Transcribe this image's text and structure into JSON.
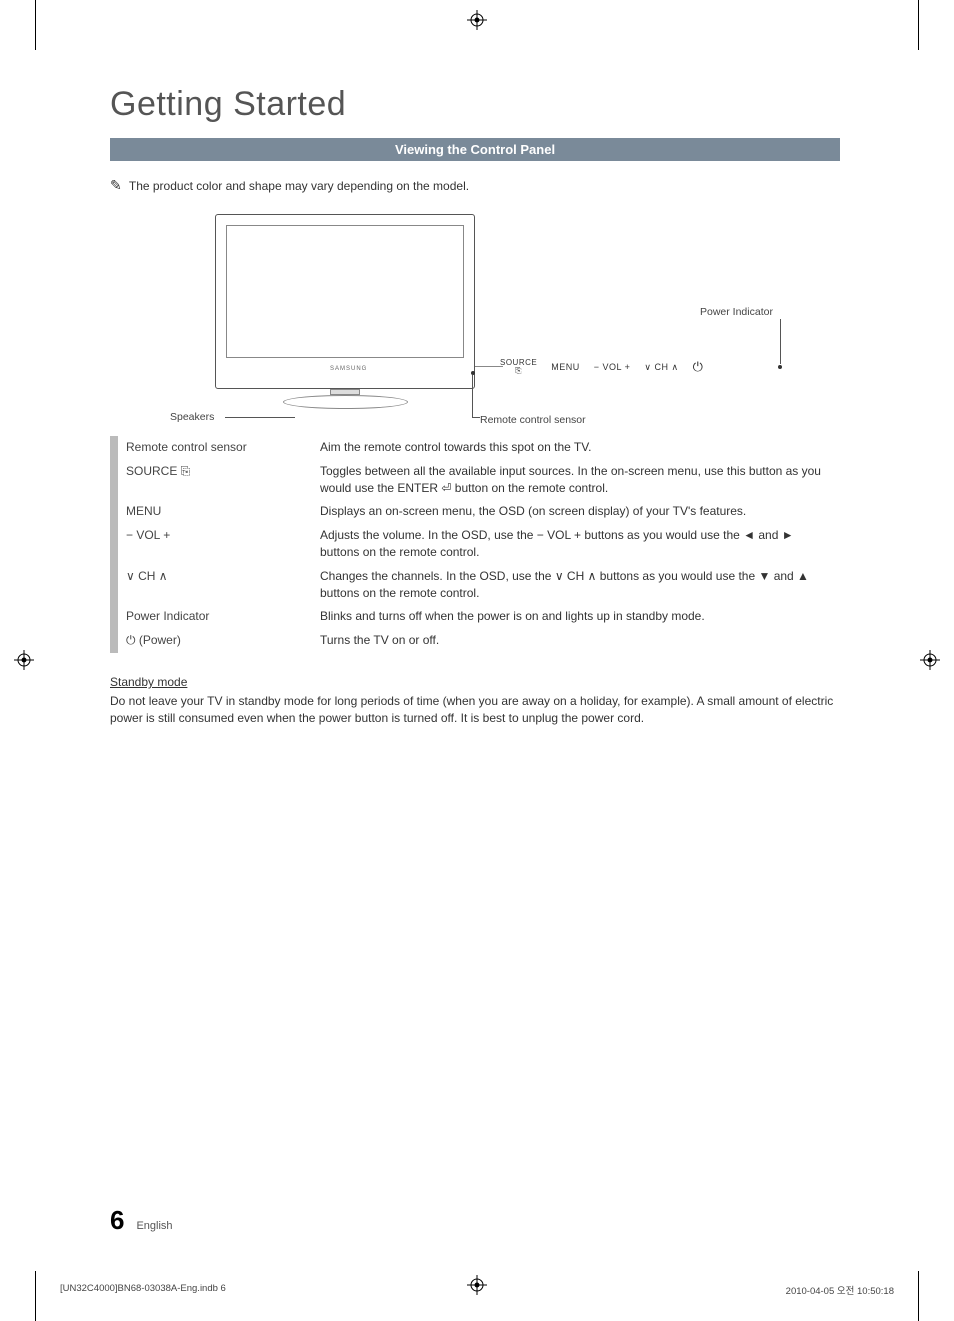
{
  "page": {
    "title": "Getting Started",
    "section_bar": "Viewing the Control Panel",
    "note": "The product color and shape may vary depending on the model.",
    "note_icon": "✎"
  },
  "diagram": {
    "speakers_label": "Speakers",
    "remote_sensor_label": "Remote control sensor",
    "power_indicator_label": "Power Indicator",
    "tv_logo": "SAMSUNG",
    "controls": {
      "source": "SOURCE",
      "source_icon": "⎘",
      "menu": "MENU",
      "vol": "− VOL +",
      "ch": "∨ CH ∧",
      "power_icon": "⏻"
    }
  },
  "table": {
    "rows": [
      {
        "label": "Remote control sensor",
        "desc": "Aim the remote control towards this spot on the TV."
      },
      {
        "label": "SOURCE ⎘",
        "desc": "Toggles between all the available input sources. In the on-screen menu, use this button as you would use the ENTER ⏎ button on the remote control."
      },
      {
        "label": "MENU",
        "desc": "Displays an on-screen menu, the OSD (on screen display) of your TV's features."
      },
      {
        "label": "− VOL +",
        "desc": "Adjusts the volume. In the OSD, use the − VOL + buttons as you would use the ◄ and ► buttons on the remote control."
      },
      {
        "label": "∨ CH ∧",
        "desc": "Changes the channels. In the OSD, use the ∨ CH ∧ buttons as you would use the ▼ and ▲ buttons on the remote control."
      },
      {
        "label": "Power Indicator",
        "desc": "Blinks and turns off when the power is on and lights up in standby mode."
      },
      {
        "label": "⏻ (Power)",
        "desc": "Turns the TV on or off."
      }
    ]
  },
  "standby": {
    "heading": "Standby mode",
    "text": "Do not leave your TV in standby mode for long periods of time (when you are away on a holiday, for example). A small amount of electric power is still consumed even when the power button is turned off. It is best to unplug the power cord."
  },
  "footer": {
    "page_num": "6",
    "lang": "English"
  },
  "print": {
    "left": "[UN32C4000]BN68-03038A-Eng.indb   6",
    "right": "2010-04-05   오전 10:50:18"
  },
  "colors": {
    "section_bar_bg": "#7a8a99",
    "table_accent": "#bbbbbb",
    "text": "#333333",
    "title": "#555555"
  }
}
